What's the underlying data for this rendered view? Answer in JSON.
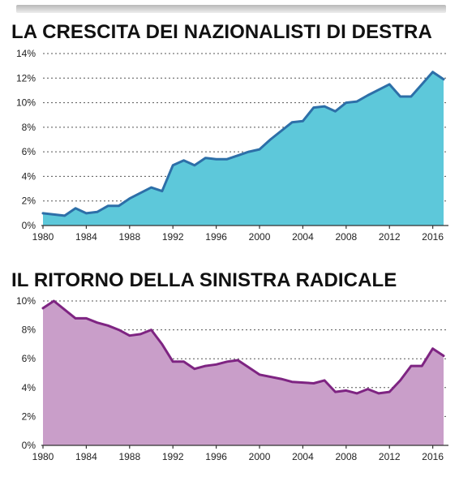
{
  "chart_data": [
    {
      "type": "area",
      "title": "LA CRESCITA DEI NAZIONALISTI DI DESTRA",
      "x": [
        1980,
        1982,
        1983,
        1984,
        1985,
        1986,
        1987,
        1988,
        1990,
        1991,
        1992,
        1993,
        1994,
        1995,
        1996,
        1997,
        1998,
        1999,
        2000,
        2001,
        2003,
        2004,
        2005,
        2006,
        2007,
        2008,
        2009,
        2010,
        2012,
        2013,
        2014,
        2015,
        2016,
        2017
      ],
      "series": [
        {
          "values": [
            1.0,
            0.8,
            1.4,
            1.0,
            1.1,
            1.6,
            1.6,
            2.2,
            3.1,
            2.8,
            4.9,
            5.3,
            4.9,
            5.5,
            5.4,
            5.4,
            5.7,
            6.0,
            6.2,
            7.0,
            8.4,
            8.5,
            9.6,
            9.7,
            9.3,
            10.0,
            10.1,
            10.6,
            11.5,
            10.5,
            10.5,
            11.5,
            12.5,
            11.9
          ]
        }
      ],
      "xticks": [
        "1980",
        "1984",
        "1988",
        "1992",
        "1996",
        "2000",
        "2004",
        "2008",
        "2012",
        "2016"
      ],
      "yticks": [
        "0%",
        "2%",
        "4%",
        "6%",
        "8%",
        "10%",
        "12%",
        "14%"
      ],
      "xlim": [
        1980,
        2017
      ],
      "ylim": [
        0,
        14
      ],
      "grid": true,
      "colors": {
        "fill": "#5dc8da",
        "line": "#2d6fa8"
      }
    },
    {
      "type": "area",
      "title": "IL RITORNO DELLA SINISTRA RADICALE",
      "x": [
        1980,
        1981,
        1982,
        1983,
        1984,
        1985,
        1986,
        1987,
        1988,
        1989,
        1990,
        1991,
        1992,
        1993,
        1994,
        1995,
        1996,
        1997,
        1998,
        1999,
        2000,
        2002,
        2003,
        2005,
        2006,
        2007,
        2008,
        2009,
        2010,
        2011,
        2012,
        2013,
        2014,
        2015,
        2016,
        2017
      ],
      "series": [
        {
          "values": [
            9.5,
            10.0,
            9.4,
            8.8,
            8.8,
            8.5,
            8.3,
            8.0,
            7.6,
            7.7,
            8.0,
            7.0,
            5.8,
            5.8,
            5.3,
            5.5,
            5.6,
            5.8,
            5.9,
            5.4,
            4.9,
            4.6,
            4.4,
            4.3,
            4.5,
            3.7,
            3.8,
            3.6,
            3.9,
            3.6,
            3.7,
            4.5,
            5.5,
            5.5,
            6.7,
            6.2
          ]
        }
      ],
      "xticks": [
        "1980",
        "1984",
        "1988",
        "1992",
        "1996",
        "2000",
        "2004",
        "2008",
        "2012",
        "2016"
      ],
      "yticks": [
        "0%",
        "2%",
        "4%",
        "6%",
        "8%",
        "10%"
      ],
      "xlim": [
        1980,
        2017
      ],
      "ylim": [
        0,
        10
      ],
      "grid": true,
      "colors": {
        "fill": "#c99ec9",
        "line": "#7e2482"
      }
    }
  ]
}
